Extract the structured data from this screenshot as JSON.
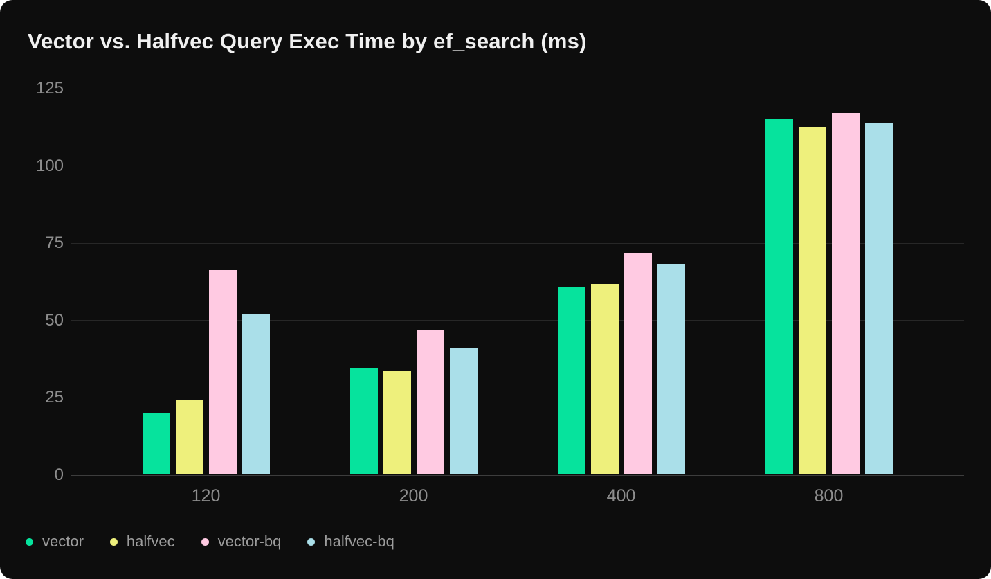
{
  "title": "Vector vs. Halfvec Query Exec Time by ef_search (ms)",
  "colors": {
    "page_bg": "#ffffff",
    "card_bg": "#0d0d0d",
    "title_text": "#f0f0f0",
    "gridline": "#272727",
    "axis_line": "#3d3d3d",
    "tick_label": "#8d8d8d",
    "legend_text": "#9c9c9c"
  },
  "chart_data": {
    "type": "bar",
    "title": "Vector vs. Halfvec Query Exec Time by ef_search (ms)",
    "xlabel": "",
    "ylabel": "",
    "units": "ms",
    "categories": [
      "120",
      "200",
      "400",
      "800"
    ],
    "series": [
      {
        "name": "vector",
        "color": "#06e39d",
        "values": [
          20,
          34.5,
          60.5,
          115
        ]
      },
      {
        "name": "halfvec",
        "color": "#eef07c",
        "values": [
          24,
          33.5,
          61.5,
          112.5
        ]
      },
      {
        "name": "vector-bq",
        "color": "#ffcae2",
        "values": [
          66,
          46.5,
          71.5,
          117
        ]
      },
      {
        "name": "halfvec-bq",
        "color": "#aadfe9",
        "values": [
          52,
          41,
          68,
          113.5
        ]
      }
    ],
    "ylim": [
      0,
      125
    ],
    "yticks": [
      0,
      25,
      50,
      75,
      100,
      125
    ],
    "grid": true,
    "legend_position": "bottom-left"
  }
}
